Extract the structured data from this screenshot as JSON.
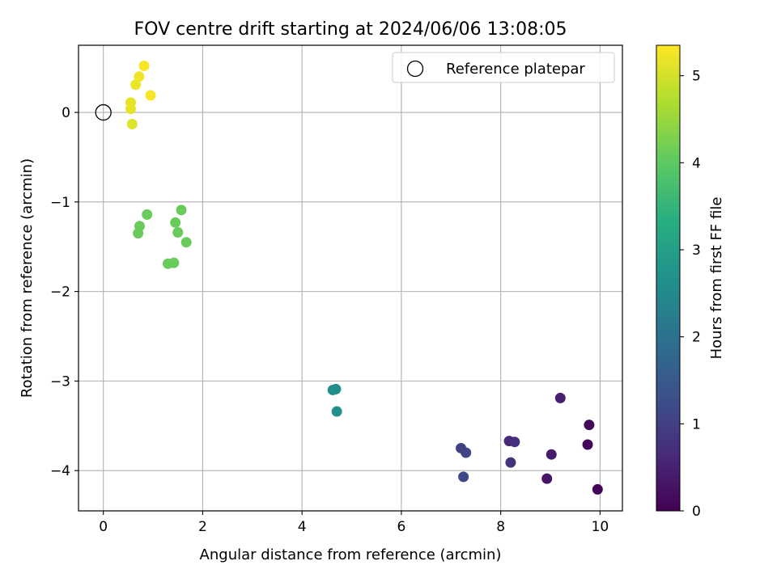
{
  "chart_data": {
    "type": "scatter",
    "title": "FOV centre drift starting at 2024/06/06 13:08:05",
    "xlabel": "Angular distance from reference (arcmin)",
    "ylabel": "Rotation from reference (arcmin)",
    "xlim": [
      -0.5,
      10.45
    ],
    "ylim": [
      -4.45,
      0.75
    ],
    "xticks": [
      0,
      2,
      4,
      6,
      8,
      10
    ],
    "yticks": [
      0,
      -1,
      -2,
      -3,
      -4
    ],
    "grid": true,
    "legend": {
      "position": "top-right",
      "entries": [
        "Reference platepar"
      ]
    },
    "reference_point": {
      "x": 0,
      "y": 0
    },
    "colorbar": {
      "label": "Hours from first FF file",
      "range": [
        0,
        5.35
      ],
      "ticks": [
        0,
        1,
        2,
        3,
        4,
        5
      ],
      "colormap": "viridis"
    },
    "points": [
      {
        "x": 9.95,
        "y": -4.21,
        "h": 0.05
      },
      {
        "x": 9.75,
        "y": -3.71,
        "h": 0.1
      },
      {
        "x": 9.78,
        "y": -3.49,
        "h": 0.12
      },
      {
        "x": 8.93,
        "y": -4.09,
        "h": 0.3
      },
      {
        "x": 9.02,
        "y": -3.82,
        "h": 0.4
      },
      {
        "x": 9.2,
        "y": -3.19,
        "h": 0.45
      },
      {
        "x": 8.17,
        "y": -3.67,
        "h": 0.6
      },
      {
        "x": 8.28,
        "y": -3.68,
        "h": 0.7
      },
      {
        "x": 8.2,
        "y": -3.91,
        "h": 0.75
      },
      {
        "x": 7.2,
        "y": -3.75,
        "h": 1.05
      },
      {
        "x": 7.3,
        "y": -3.8,
        "h": 1.1
      },
      {
        "x": 7.25,
        "y": -4.07,
        "h": 1.15
      },
      {
        "x": 4.62,
        "y": -3.1,
        "h": 2.6
      },
      {
        "x": 4.68,
        "y": -3.09,
        "h": 2.62
      },
      {
        "x": 4.7,
        "y": -3.34,
        "h": 2.65
      },
      {
        "x": 1.57,
        "y": -1.09,
        "h": 4.1
      },
      {
        "x": 0.88,
        "y": -1.14,
        "h": 4.1
      },
      {
        "x": 1.45,
        "y": -1.23,
        "h": 4.1
      },
      {
        "x": 0.73,
        "y": -1.27,
        "h": 4.1
      },
      {
        "x": 0.7,
        "y": -1.35,
        "h": 4.1
      },
      {
        "x": 1.5,
        "y": -1.34,
        "h": 4.1
      },
      {
        "x": 1.67,
        "y": -1.45,
        "h": 4.1
      },
      {
        "x": 1.3,
        "y": -1.69,
        "h": 4.1
      },
      {
        "x": 1.42,
        "y": -1.68,
        "h": 4.1
      },
      {
        "x": 0.82,
        "y": 0.52,
        "h": 5.3
      },
      {
        "x": 0.72,
        "y": 0.4,
        "h": 5.25
      },
      {
        "x": 0.65,
        "y": 0.31,
        "h": 5.2
      },
      {
        "x": 0.95,
        "y": 0.19,
        "h": 5.3
      },
      {
        "x": 0.55,
        "y": 0.11,
        "h": 5.15
      },
      {
        "x": 0.55,
        "y": 0.04,
        "h": 5.15
      },
      {
        "x": 0.58,
        "y": -0.13,
        "h": 5.1
      }
    ]
  }
}
